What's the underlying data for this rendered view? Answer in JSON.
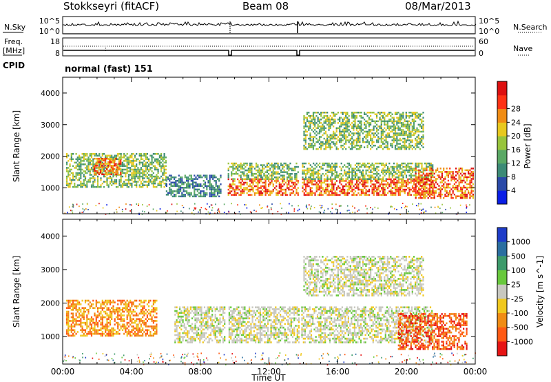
{
  "header": {
    "station": "Stokkseyri (fitACF)",
    "beam": "Beam 08",
    "date": "08/Mar/2013"
  },
  "aux_panels": {
    "nsky_label": "N.Sky",
    "nsky_top_tick": "10^5",
    "nsky_bottom_tick": "10^0",
    "nsearch_label": "N.Search",
    "nsearch_top_tick": "10^5",
    "nsearch_bottom_tick": "10^0",
    "freq_label_1": "Freq.",
    "freq_label_2": "[MHz]",
    "freq_top_tick": "18",
    "freq_bottom_tick": "8",
    "nave_label": "Nave",
    "nave_top_tick": "60",
    "nave_bottom_tick": "0",
    "cpid_label": "CPID",
    "cpid_value": "normal (fast) 151"
  },
  "chart_data": [
    {
      "type": "heatmap",
      "title": "",
      "quantity": "Power",
      "ylabel": "Slant Range [km]",
      "xlabel": "",
      "ylim": [
        180,
        4500
      ],
      "xlim": [
        "00:00",
        "24:00"
      ],
      "y_ticks": [
        "1000",
        "2000",
        "3000",
        "4000"
      ],
      "colorbar_label": "Power [dB]",
      "colorbar_ticks": [
        "4",
        "8",
        "12",
        "16",
        "20",
        "24",
        "28"
      ],
      "colorbar_colors": [
        "#0a1ee6",
        "#2a4aa8",
        "#3c8a76",
        "#5aa864",
        "#98c43c",
        "#e8c81e",
        "#f08c14",
        "#ff3214",
        "#dd1010"
      ],
      "echo_regions": [
        {
          "t0": 0.2,
          "t1": 6.0,
          "r0": 1000,
          "r1": 2100,
          "level": "medium"
        },
        {
          "t0": 1.8,
          "t1": 3.4,
          "r0": 1400,
          "r1": 1900,
          "level": "high"
        },
        {
          "t0": 6.0,
          "t1": 9.2,
          "r0": 700,
          "r1": 1400,
          "level": "low"
        },
        {
          "t0": 9.6,
          "t1": 21.5,
          "r0": 750,
          "r1": 1250,
          "level": "high"
        },
        {
          "t0": 9.6,
          "t1": 21.5,
          "r0": 1250,
          "r1": 1800,
          "level": "medium"
        },
        {
          "t0": 14.0,
          "t1": 21.0,
          "r0": 2200,
          "r1": 3400,
          "level": "medium"
        },
        {
          "t0": 20.5,
          "t1": 23.9,
          "r0": 650,
          "r1": 1600,
          "level": "high"
        }
      ]
    },
    {
      "type": "heatmap",
      "title": "",
      "quantity": "Velocity",
      "ylabel": "Slant Range [km]",
      "xlabel": "Time UT",
      "ylim": [
        180,
        4500
      ],
      "xlim": [
        "00:00",
        "24:00"
      ],
      "x_ticks": [
        "00:00",
        "04:00",
        "08:00",
        "12:00",
        "16:00",
        "20:00",
        "00:00"
      ],
      "y_ticks": [
        "1000",
        "2000",
        "3000",
        "4000"
      ],
      "colorbar_label": "Velocity [m s^-1]",
      "colorbar_ticks": [
        "1000",
        "500",
        "100",
        "25",
        "-25",
        "-100",
        "-500",
        "-1000"
      ],
      "colorbar_colors": [
        "#1e3cc8",
        "#2a6ea0",
        "#3c9a6a",
        "#68c83c",
        "#c8c8c0",
        "#f0c81e",
        "#f08c14",
        "#ff5a14",
        "#e61414"
      ],
      "echo_regions": [
        {
          "t0": 0.2,
          "t1": 5.5,
          "r0": 1000,
          "r1": 2100,
          "level": "negative"
        },
        {
          "t0": 6.5,
          "t1": 21.5,
          "r0": 800,
          "r1": 1900,
          "level": "near_zero"
        },
        {
          "t0": 14.0,
          "t1": 21.0,
          "r0": 2200,
          "r1": 3400,
          "level": "near_zero"
        },
        {
          "t0": 19.5,
          "t1": 23.5,
          "r0": 600,
          "r1": 1700,
          "level": "strong_negative"
        }
      ]
    }
  ]
}
